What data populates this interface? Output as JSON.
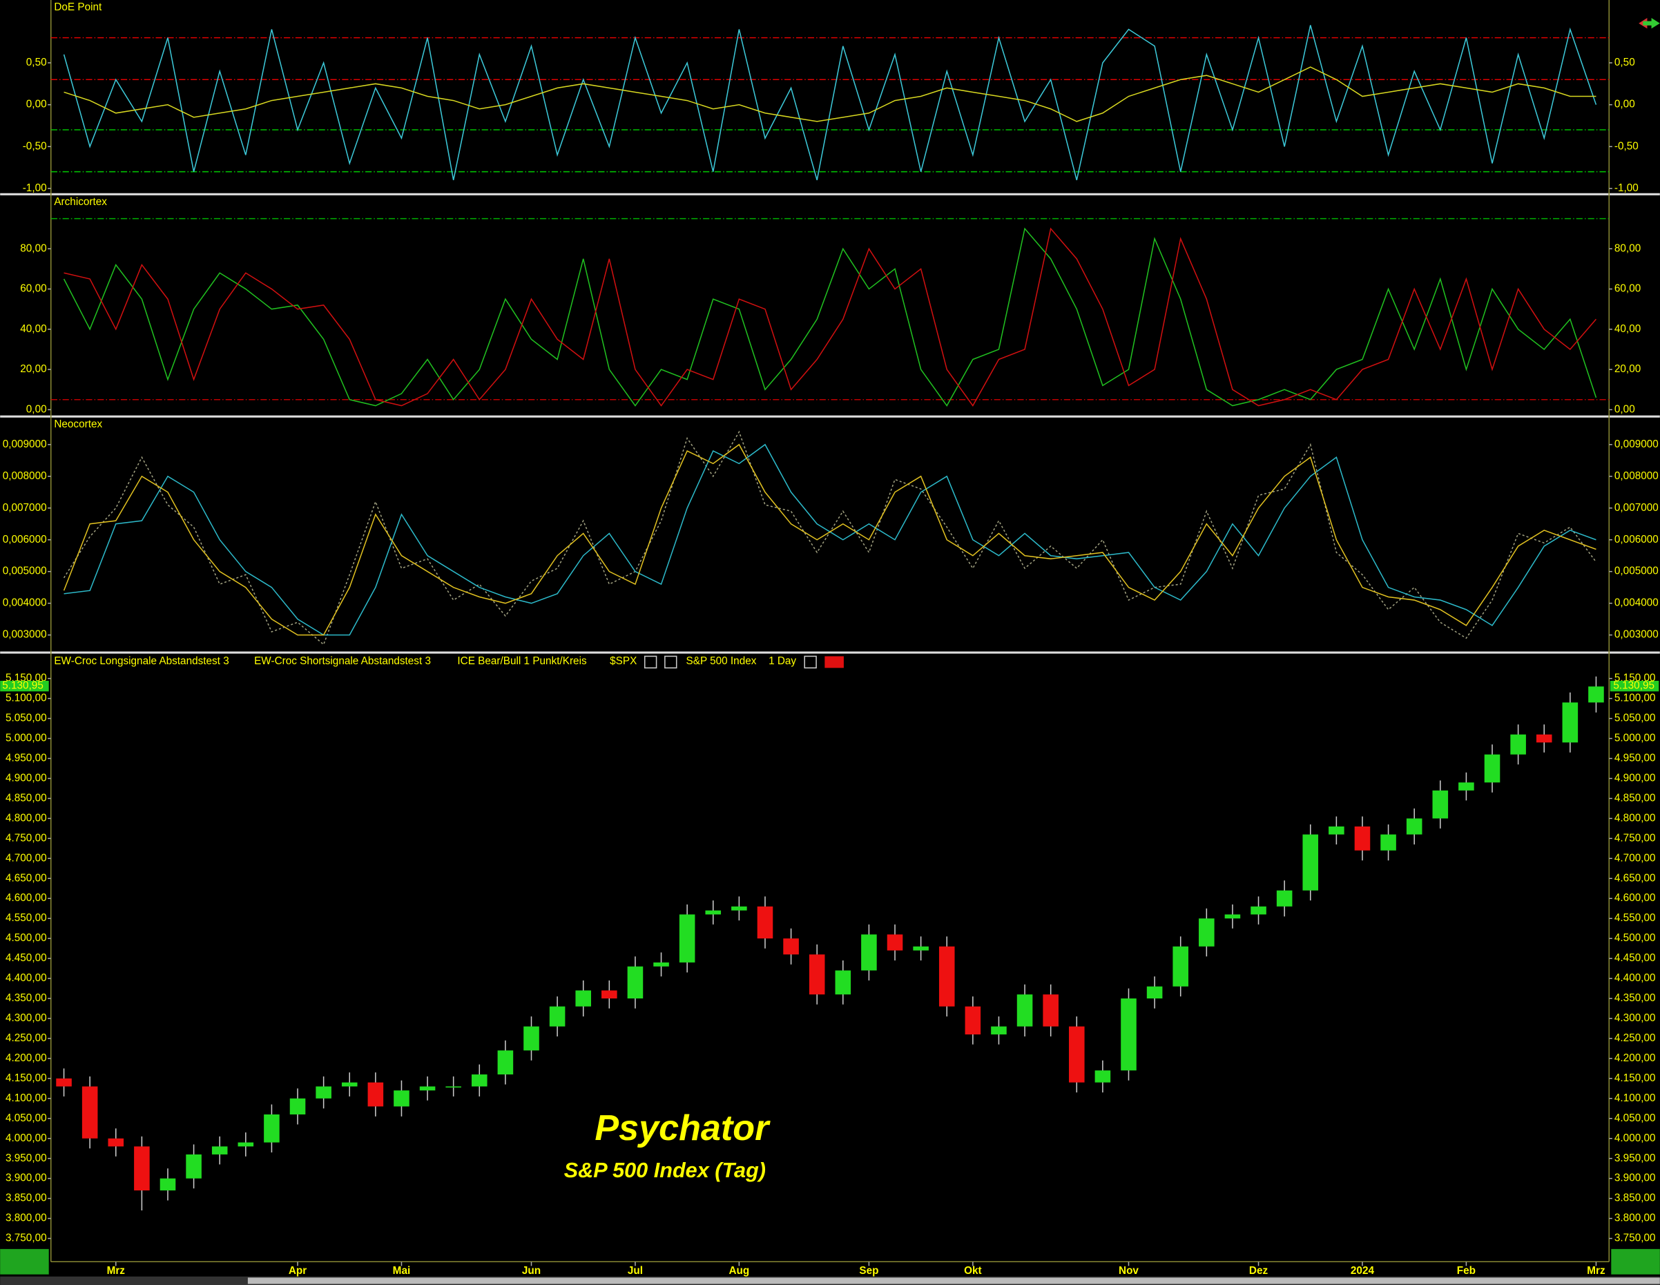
{
  "chart_data": [
    {
      "type": "line",
      "title": "DoE Point",
      "ylim": [
        -1.05,
        1.225
      ],
      "yticks": [
        {
          "value": 0.5,
          "label": "0,50"
        },
        {
          "value": 0,
          "label": "0,00"
        },
        {
          "value": -0.5,
          "label": "-0,50"
        },
        {
          "value": -1,
          "label": "-1,00"
        }
      ],
      "reference_lines": [
        {
          "value": 0.8,
          "color": "#e00000"
        },
        {
          "value": 0.3,
          "color": "#e00000"
        },
        {
          "value": -0.3,
          "color": "#00c000"
        },
        {
          "value": -0.8,
          "color": "#00c000"
        }
      ],
      "series": [
        {
          "color": "#3cc8d8",
          "values": [
            0.6,
            -0.5,
            0.3,
            -0.2,
            0.8,
            -0.8,
            0.4,
            -0.6,
            0.9,
            -0.3,
            0.5,
            -0.7,
            0.2,
            -0.4,
            0.8,
            -0.9,
            0.6,
            -0.2,
            0.7,
            -0.6,
            0.3,
            -0.5,
            0.8,
            -0.1,
            0.5,
            -0.8,
            0.9,
            -0.4,
            0.2,
            -0.9,
            0.7,
            -0.3,
            0.6,
            -0.8,
            0.4,
            -0.6,
            0.8,
            -0.2,
            0.3,
            -0.9,
            0.5,
            0.9,
            0.7,
            -0.8,
            0.6,
            -0.3,
            0.8,
            -0.5,
            0.95,
            -0.2,
            0.7,
            -0.6,
            0.4,
            -0.3,
            0.8,
            -0.7,
            0.6,
            -0.4,
            0.9,
            0.0
          ]
        },
        {
          "color": "#d8d820",
          "values": [
            0.15,
            0.05,
            -0.1,
            -0.05,
            0.0,
            -0.15,
            -0.1,
            -0.05,
            0.05,
            0.1,
            0.15,
            0.2,
            0.25,
            0.2,
            0.1,
            0.05,
            -0.05,
            0.0,
            0.1,
            0.2,
            0.25,
            0.2,
            0.15,
            0.1,
            0.05,
            -0.05,
            0.0,
            -0.1,
            -0.15,
            -0.2,
            -0.15,
            -0.1,
            0.05,
            0.1,
            0.2,
            0.15,
            0.1,
            0.05,
            -0.05,
            -0.2,
            -0.1,
            0.1,
            0.2,
            0.3,
            0.35,
            0.25,
            0.15,
            0.3,
            0.45,
            0.3,
            0.1,
            0.15,
            0.2,
            0.25,
            0.2,
            0.15,
            0.25,
            0.2,
            0.1,
            0.1
          ]
        }
      ]
    },
    {
      "type": "line",
      "title": "Archicortex",
      "ylim": [
        -2.6,
        105.8
      ],
      "yticks": [
        {
          "value": 0,
          "label": "0,00"
        },
        {
          "value": 20,
          "label": "20,00"
        },
        {
          "value": 40,
          "label": "40,00"
        },
        {
          "value": 60,
          "label": "60,00"
        },
        {
          "value": 80,
          "label": "80,00"
        }
      ],
      "reference_lines": [
        {
          "value": 95,
          "color": "#00b000"
        },
        {
          "value": 5,
          "color": "#c00000"
        }
      ],
      "series": [
        {
          "color": "#20c020",
          "values": [
            65,
            40,
            72,
            55,
            15,
            50,
            68,
            60,
            50,
            52,
            35,
            5,
            2,
            8,
            25,
            5,
            20,
            55,
            35,
            25,
            75,
            20,
            2,
            20,
            15,
            55,
            50,
            10,
            25,
            45,
            80,
            60,
            70,
            20,
            2,
            25,
            30,
            90,
            75,
            50,
            12,
            20,
            85,
            55,
            10,
            2,
            5,
            10,
            5,
            20,
            25,
            60,
            30,
            65,
            20,
            60,
            40,
            30,
            45,
            6
          ]
        },
        {
          "color": "#d01010",
          "values": [
            68,
            65,
            40,
            72,
            55,
            15,
            50,
            68,
            60,
            50,
            52,
            35,
            5,
            2,
            8,
            25,
            5,
            20,
            55,
            35,
            25,
            75,
            20,
            2,
            20,
            15,
            55,
            50,
            10,
            25,
            45,
            80,
            60,
            70,
            20,
            2,
            25,
            30,
            90,
            75,
            50,
            12,
            20,
            85,
            55,
            10,
            2,
            5,
            10,
            5,
            20,
            25,
            60,
            30,
            65,
            20,
            60,
            40,
            30,
            45
          ]
        }
      ]
    },
    {
      "type": "line",
      "title": "Neocortex",
      "ylim": [
        0.00253,
        0.0098
      ],
      "yticks": [
        {
          "value": 0.003,
          "label": "0,003000"
        },
        {
          "value": 0.004,
          "label": "0,004000"
        },
        {
          "value": 0.005,
          "label": "0,005000"
        },
        {
          "value": 0.006,
          "label": "0,006000"
        },
        {
          "value": 0.007,
          "label": "0,007000"
        },
        {
          "value": 0.008,
          "label": "0,008000"
        },
        {
          "value": 0.009,
          "label": "0,009000"
        }
      ],
      "series": [
        {
          "color": "#a0a080",
          "dotted": true,
          "values": [
            0.0048,
            0.0061,
            0.007,
            0.0086,
            0.0071,
            0.0064,
            0.0046,
            0.0049,
            0.0031,
            0.0034,
            0.0027,
            0.0049,
            0.0072,
            0.0051,
            0.0054,
            0.0041,
            0.0046,
            0.0036,
            0.0047,
            0.0051,
            0.0066,
            0.0046,
            0.005,
            0.0066,
            0.0092,
            0.008,
            0.0094,
            0.0071,
            0.0069,
            0.0056,
            0.0069,
            0.0056,
            0.0079,
            0.0076,
            0.0064,
            0.0051,
            0.0066,
            0.0051,
            0.0058,
            0.0051,
            0.006,
            0.0041,
            0.0045,
            0.0046,
            0.0069,
            0.0051,
            0.0074,
            0.0076,
            0.009,
            0.0056,
            0.0049,
            0.0038,
            0.0045,
            0.0034,
            0.0029,
            0.0041,
            0.0062,
            0.0059,
            0.0064,
            0.0053
          ]
        },
        {
          "color": "#2cb8c8",
          "values": [
            0.0043,
            0.0044,
            0.0065,
            0.0066,
            0.008,
            0.0075,
            0.006,
            0.005,
            0.0045,
            0.0035,
            0.003,
            0.003,
            0.0045,
            0.0068,
            0.0055,
            0.005,
            0.0045,
            0.0042,
            0.004,
            0.0043,
            0.0055,
            0.0062,
            0.005,
            0.0046,
            0.007,
            0.0088,
            0.0084,
            0.009,
            0.0075,
            0.0065,
            0.006,
            0.0065,
            0.006,
            0.0075,
            0.008,
            0.006,
            0.0055,
            0.0062,
            0.0055,
            0.0054,
            0.0055,
            0.0056,
            0.0045,
            0.0041,
            0.005,
            0.0065,
            0.0055,
            0.007,
            0.008,
            0.0086,
            0.006,
            0.0045,
            0.0042,
            0.0041,
            0.0038,
            0.0033,
            0.0045,
            0.0058,
            0.0063,
            0.006
          ]
        },
        {
          "color": "#e0c020",
          "values": [
            0.0044,
            0.0065,
            0.0066,
            0.008,
            0.0075,
            0.006,
            0.005,
            0.0045,
            0.0035,
            0.003,
            0.003,
            0.0045,
            0.0068,
            0.0055,
            0.005,
            0.0045,
            0.0042,
            0.004,
            0.0043,
            0.0055,
            0.0062,
            0.005,
            0.0046,
            0.007,
            0.0088,
            0.0084,
            0.009,
            0.0075,
            0.0065,
            0.006,
            0.0065,
            0.006,
            0.0075,
            0.008,
            0.006,
            0.0055,
            0.0062,
            0.0055,
            0.0054,
            0.0055,
            0.0056,
            0.0045,
            0.0041,
            0.005,
            0.0065,
            0.0055,
            0.007,
            0.008,
            0.0086,
            0.006,
            0.0045,
            0.0042,
            0.0041,
            0.0038,
            0.0033,
            0.0045,
            0.0058,
            0.0063,
            0.006,
            0.0057
          ]
        }
      ]
    },
    {
      "type": "candlestick",
      "legend": [
        "EW-Croc Longsignale Abstandstest 3",
        "EW-Croc Shortsignale Abstandstest 3",
        "ICE Bear/Bull 1 Punkt/Kreis",
        "$SPX",
        "S&P 500 Index",
        "1 Day"
      ],
      "annotations": [
        "Psychator",
        "S&P 500 Index (Tag)"
      ],
      "last_price": {
        "value": 5130.95,
        "label": "5.130,95"
      },
      "up_color": "#22dd22",
      "down_color": "#ee1111",
      "ylim": [
        3691.8,
        5173.8
      ],
      "yticks": [
        {
          "value": 3750,
          "label": "3.750,00"
        },
        {
          "value": 3800,
          "label": "3.800,00"
        },
        {
          "value": 3850,
          "label": "3.850,00"
        },
        {
          "value": 3900,
          "label": "3.900,00"
        },
        {
          "value": 3950,
          "label": "3.950,00"
        },
        {
          "value": 4000,
          "label": "4.000,00"
        },
        {
          "value": 4050,
          "label": "4.050,00"
        },
        {
          "value": 4100,
          "label": "4.100,00"
        },
        {
          "value": 4150,
          "label": "4.150,00"
        },
        {
          "value": 4200,
          "label": "4.200,00"
        },
        {
          "value": 4250,
          "label": "4.250,00"
        },
        {
          "value": 4300,
          "label": "4.300,00"
        },
        {
          "value": 4350,
          "label": "4.350,00"
        },
        {
          "value": 4400,
          "label": "4.400,00"
        },
        {
          "value": 4450,
          "label": "4.450,00"
        },
        {
          "value": 4500,
          "label": "4.500,00"
        },
        {
          "value": 4550,
          "label": "4.550,00"
        },
        {
          "value": 4600,
          "label": "4.600,00"
        },
        {
          "value": 4650,
          "label": "4.650,00"
        },
        {
          "value": 4700,
          "label": "4.700,00"
        },
        {
          "value": 4750,
          "label": "4.750,00"
        },
        {
          "value": 4800,
          "label": "4.800,00"
        },
        {
          "value": 4850,
          "label": "4.850,00"
        },
        {
          "value": 4900,
          "label": "4.900,00"
        },
        {
          "value": 4950,
          "label": "4.950,00"
        },
        {
          "value": 5000,
          "label": "5.000,00"
        },
        {
          "value": 5050,
          "label": "5.050,00"
        },
        {
          "value": 5100,
          "label": "5.100,00"
        },
        {
          "value": 5150,
          "label": "5.150,00"
        }
      ],
      "categories": [
        null,
        null,
        "Mrz",
        null,
        null,
        null,
        null,
        null,
        null,
        "Apr",
        null,
        null,
        null,
        "Mai",
        null,
        null,
        null,
        null,
        "Jun",
        null,
        null,
        null,
        "Jul",
        null,
        null,
        null,
        "Aug",
        null,
        null,
        null,
        null,
        "Sep",
        null,
        null,
        null,
        "Okt",
        null,
        null,
        null,
        null,
        null,
        "Nov",
        null,
        null,
        null,
        null,
        "Dez",
        null,
        null,
        null,
        "2024",
        null,
        null,
        null,
        "Feb",
        null,
        null,
        null,
        null,
        "Mrz"
      ],
      "open": [
        4150,
        4130,
        4000,
        3980,
        3870,
        3900,
        3960,
        3980,
        3990,
        4060,
        4100,
        4130,
        4140,
        4080,
        4120,
        4130,
        4130,
        4160,
        4220,
        4280,
        4330,
        4370,
        4350,
        4430,
        4440,
        4560,
        4570,
        4580,
        4500,
        4460,
        4360,
        4420,
        4510,
        4470,
        4480,
        4330,
        4260,
        4280,
        4360,
        4280,
        4140,
        4170,
        4350,
        4380,
        4480,
        4550,
        4560,
        4580,
        4620,
        4760,
        4780,
        4720,
        4760,
        4800,
        4870,
        4890,
        4960,
        5010,
        4990,
        5090
      ],
      "high": [
        4175,
        4155,
        4025,
        4005,
        3925,
        3985,
        4005,
        4015,
        4085,
        4125,
        4155,
        4165,
        4165,
        4145,
        4155,
        4155,
        4185,
        4245,
        4305,
        4355,
        4395,
        4395,
        4455,
        4465,
        4585,
        4595,
        4605,
        4605,
        4525,
        4485,
        4445,
        4535,
        4535,
        4505,
        4505,
        4355,
        4305,
        4385,
        4385,
        4305,
        4195,
        4375,
        4405,
        4505,
        4575,
        4585,
        4605,
        4645,
        4785,
        4805,
        4805,
        4785,
        4825,
        4895,
        4915,
        4985,
        5035,
        5035,
        5115,
        5155
      ],
      "low": [
        4105,
        3975,
        3955,
        3820,
        3845,
        3875,
        3935,
        3955,
        3965,
        4035,
        4075,
        4105,
        4055,
        4055,
        4095,
        4105,
        4105,
        4135,
        4195,
        4255,
        4305,
        4325,
        4325,
        4405,
        4415,
        4535,
        4545,
        4475,
        4435,
        4335,
        4335,
        4395,
        4445,
        4445,
        4305,
        4235,
        4235,
        4255,
        4255,
        4115,
        4115,
        4145,
        4325,
        4355,
        4455,
        4525,
        4535,
        4555,
        4595,
        4735,
        4695,
        4695,
        4735,
        4775,
        4845,
        4865,
        4935,
        4965,
        4965,
        5065
      ],
      "close": [
        4130,
        4000,
        3980,
        3870,
        3900,
        3960,
        3980,
        3990,
        4060,
        4100,
        4130,
        4140,
        4080,
        4120,
        4130,
        4130,
        4160,
        4220,
        4280,
        4330,
        4370,
        4350,
        4430,
        4440,
        4560,
        4570,
        4580,
        4500,
        4460,
        4360,
        4420,
        4510,
        4470,
        4480,
        4330,
        4260,
        4280,
        4360,
        4280,
        4140,
        4170,
        4350,
        4380,
        4480,
        4550,
        4560,
        4580,
        4620,
        4760,
        4780,
        4720,
        4760,
        4800,
        4870,
        4890,
        4960,
        5010,
        4990,
        5090,
        5130
      ]
    }
  ]
}
